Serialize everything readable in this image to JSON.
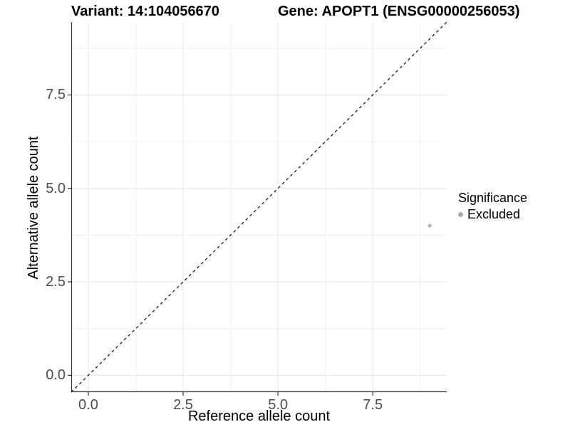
{
  "chart_data": {
    "type": "scatter",
    "titles": {
      "left": "Variant: 14:104056670",
      "right": "Gene: APOPT1 (ENSG00000256053)"
    },
    "xlabel": "Reference allele count",
    "ylabel": "Alternative allele count",
    "xlim": [
      -0.45,
      9.45
    ],
    "ylim": [
      -0.45,
      9.45
    ],
    "x_ticks": [
      0,
      2.5,
      5,
      7.5
    ],
    "y_ticks": [
      0,
      2.5,
      5,
      7.5
    ],
    "x_tick_labels": [
      "0.0",
      "2.5",
      "5.0",
      "7.5"
    ],
    "y_tick_labels": [
      "0.0",
      "2.5",
      "5.0",
      "7.5"
    ],
    "minor_grid_step": 1.25,
    "grid": "major+minor",
    "reference_line": {
      "type": "identity y=x",
      "style": "dashed",
      "color": "#1a1a1a"
    },
    "series": [
      {
        "name": "Excluded",
        "color": "#b0b0b0",
        "marker": "circle",
        "point_radius": 2.5,
        "points": [
          [
            9,
            4
          ]
        ]
      }
    ],
    "legend": {
      "title": "Significance",
      "position": "right",
      "entries": [
        {
          "label": "Excluded",
          "color": "#a9a9a9"
        }
      ]
    },
    "style": {
      "grid_major_color": "#e6e6e6",
      "grid_minor_color": "#f1f1f1",
      "axis_color": "#333333",
      "tick_color": "#333333",
      "tick_label_color": "#4d4d4d",
      "background": "#ffffff"
    }
  }
}
